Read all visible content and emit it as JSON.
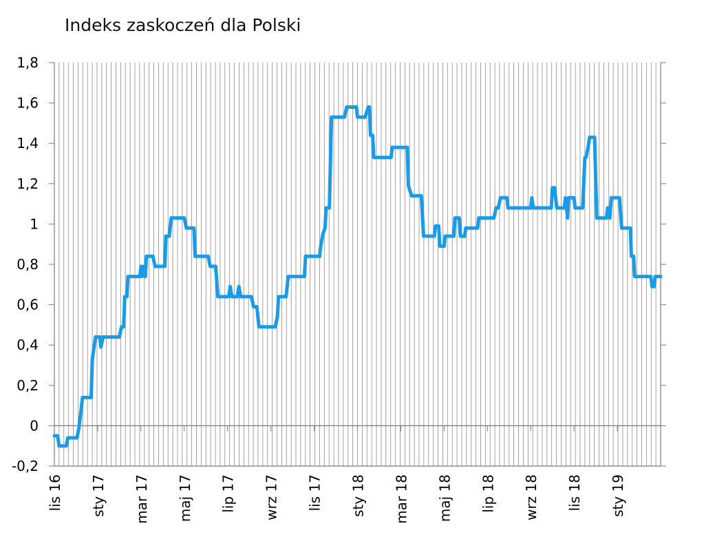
{
  "chart_data": {
    "type": "line",
    "title": "Indeks zaskoczeń dla Polski",
    "xlabel": "",
    "ylabel": "",
    "ylim": [
      -0.2,
      1.8
    ],
    "yticks": [
      "-0,2",
      "0",
      "0,2",
      "0,4",
      "0,6",
      "0,8",
      "1",
      "1,2",
      "1,4",
      "1,6",
      "1,8"
    ],
    "x_tick_labels": [
      "lis 16",
      "sty 17",
      "mar 17",
      "maj 17",
      "lip 17",
      "wrz 17",
      "lis 17",
      "sty 18",
      "mar 18",
      "maj 18",
      "lip 18",
      "wrz 18",
      "lis 18",
      "sty 19"
    ],
    "x_range_months": [
      0,
      28
    ],
    "grid": "vertical",
    "color": "#1a9be8",
    "series": [
      {
        "values": [
          [
            0.0,
            -0.05
          ],
          [
            0.15,
            -0.05
          ],
          [
            0.22,
            -0.1
          ],
          [
            0.55,
            -0.1
          ],
          [
            0.62,
            -0.06
          ],
          [
            1.05,
            -0.06
          ],
          [
            1.15,
            0.0
          ],
          [
            1.3,
            0.14
          ],
          [
            1.55,
            0.14
          ],
          [
            1.7,
            0.14
          ],
          [
            1.75,
            0.33
          ],
          [
            1.9,
            0.44
          ],
          [
            2.1,
            0.44
          ],
          [
            2.15,
            0.39
          ],
          [
            2.25,
            0.44
          ],
          [
            3.0,
            0.44
          ],
          [
            3.1,
            0.49
          ],
          [
            3.2,
            0.49
          ],
          [
            3.25,
            0.64
          ],
          [
            3.35,
            0.64
          ],
          [
            3.4,
            0.74
          ],
          [
            3.95,
            0.74
          ],
          [
            4.0,
            0.79
          ],
          [
            4.05,
            0.74
          ],
          [
            4.1,
            0.79
          ],
          [
            4.2,
            0.74
          ],
          [
            4.25,
            0.84
          ],
          [
            4.55,
            0.84
          ],
          [
            4.65,
            0.79
          ],
          [
            5.1,
            0.79
          ],
          [
            5.15,
            0.94
          ],
          [
            5.3,
            0.94
          ],
          [
            5.4,
            1.03
          ],
          [
            6.0,
            1.03
          ],
          [
            6.1,
            0.98
          ],
          [
            6.45,
            0.98
          ],
          [
            6.5,
            0.84
          ],
          [
            7.1,
            0.84
          ],
          [
            7.2,
            0.79
          ],
          [
            7.45,
            0.79
          ],
          [
            7.55,
            0.64
          ],
          [
            8.05,
            0.64
          ],
          [
            8.12,
            0.69
          ],
          [
            8.2,
            0.64
          ],
          [
            8.45,
            0.64
          ],
          [
            8.52,
            0.69
          ],
          [
            8.6,
            0.64
          ],
          [
            9.1,
            0.64
          ],
          [
            9.2,
            0.59
          ],
          [
            9.35,
            0.59
          ],
          [
            9.45,
            0.49
          ],
          [
            10.2,
            0.49
          ],
          [
            10.3,
            0.54
          ],
          [
            10.35,
            0.64
          ],
          [
            10.7,
            0.64
          ],
          [
            10.8,
            0.74
          ],
          [
            11.55,
            0.74
          ],
          [
            11.6,
            0.84
          ],
          [
            12.25,
            0.84
          ],
          [
            12.3,
            0.89
          ],
          [
            12.4,
            0.95
          ],
          [
            12.5,
            0.98
          ],
          [
            12.55,
            1.08
          ],
          [
            12.7,
            1.08
          ],
          [
            12.8,
            1.53
          ],
          [
            13.4,
            1.53
          ],
          [
            13.5,
            1.58
          ],
          [
            13.95,
            1.58
          ],
          [
            14.0,
            1.53
          ],
          [
            14.35,
            1.53
          ],
          [
            14.5,
            1.58
          ],
          [
            14.55,
            1.58
          ],
          [
            14.6,
            1.44
          ],
          [
            14.7,
            1.44
          ],
          [
            14.75,
            1.33
          ],
          [
            15.55,
            1.33
          ],
          [
            15.6,
            1.38
          ],
          [
            16.3,
            1.38
          ],
          [
            16.35,
            1.19
          ],
          [
            16.5,
            1.14
          ],
          [
            16.95,
            1.14
          ],
          [
            17.05,
            0.94
          ],
          [
            17.55,
            0.94
          ],
          [
            17.6,
            0.99
          ],
          [
            17.75,
            0.99
          ],
          [
            17.8,
            0.89
          ],
          [
            18.0,
            0.89
          ],
          [
            18.05,
            0.94
          ],
          [
            18.45,
            0.94
          ],
          [
            18.5,
            1.03
          ],
          [
            18.7,
            1.03
          ],
          [
            18.75,
            0.94
          ],
          [
            18.95,
            0.94
          ],
          [
            19.0,
            0.98
          ],
          [
            19.55,
            0.98
          ],
          [
            19.6,
            1.03
          ],
          [
            20.3,
            1.03
          ],
          [
            20.4,
            1.08
          ],
          [
            20.5,
            1.08
          ],
          [
            20.6,
            1.13
          ],
          [
            20.9,
            1.13
          ],
          [
            20.95,
            1.08
          ],
          [
            22.0,
            1.08
          ],
          [
            22.05,
            1.13
          ],
          [
            22.12,
            1.08
          ],
          [
            22.95,
            1.08
          ],
          [
            23.0,
            1.18
          ],
          [
            23.1,
            1.18
          ],
          [
            23.2,
            1.08
          ],
          [
            23.55,
            1.08
          ],
          [
            23.6,
            1.13
          ],
          [
            23.7,
            1.03
          ],
          [
            23.75,
            1.13
          ],
          [
            24.0,
            1.13
          ],
          [
            24.05,
            1.08
          ],
          [
            24.4,
            1.08
          ],
          [
            24.5,
            1.33
          ],
          [
            24.55,
            1.33
          ],
          [
            24.65,
            1.38
          ],
          [
            24.72,
            1.43
          ],
          [
            24.95,
            1.43
          ],
          [
            25.05,
            1.03
          ],
          [
            25.5,
            1.03
          ],
          [
            25.55,
            1.08
          ],
          [
            25.65,
            1.03
          ],
          [
            25.72,
            1.13
          ],
          [
            26.1,
            1.13
          ],
          [
            26.2,
            0.98
          ],
          [
            26.6,
            0.98
          ],
          [
            26.65,
            0.84
          ],
          [
            26.75,
            0.84
          ],
          [
            26.8,
            0.74
          ],
          [
            27.55,
            0.74
          ],
          [
            27.6,
            0.69
          ],
          [
            27.7,
            0.69
          ],
          [
            27.75,
            0.74
          ],
          [
            28.0,
            0.74
          ]
        ]
      }
    ]
  }
}
